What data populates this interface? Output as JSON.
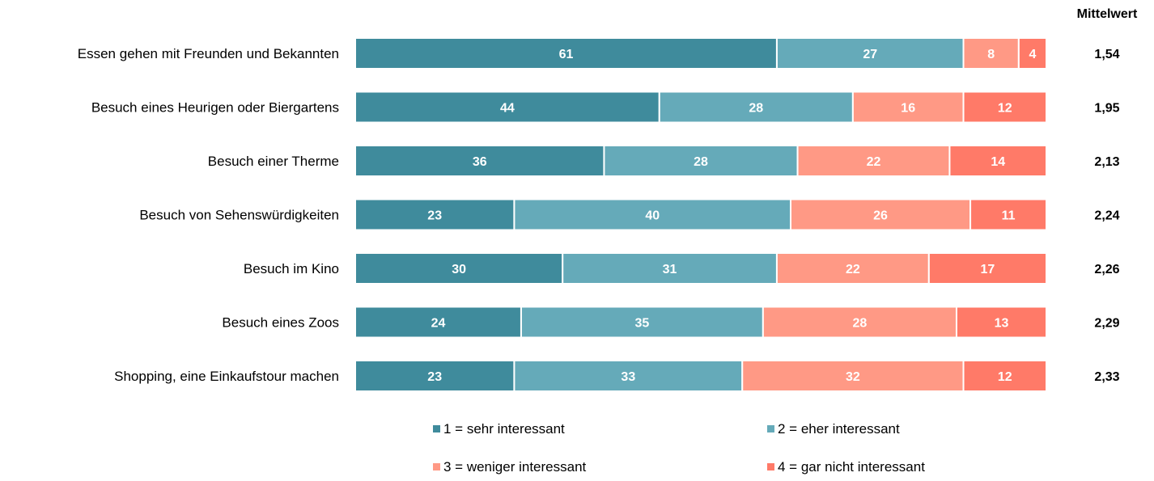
{
  "chart_data": {
    "type": "bar",
    "orientation": "horizontal",
    "stacked": true,
    "title": "",
    "mean_header": "Mittelwert",
    "categories": [
      "Essen gehen mit Freunden und Bekannten",
      "Besuch eines Heurigen oder Biergartens",
      "Besuch einer Therme",
      "Besuch von Sehenswürdigkeiten",
      "Besuch im Kino",
      "Besuch eines Zoos",
      "Shopping, eine Einkaufstour machen"
    ],
    "series": [
      {
        "name": "1 = sehr interessant",
        "color": "#3f8b9c",
        "values": [
          61,
          44,
          36,
          23,
          30,
          24,
          23
        ]
      },
      {
        "name": "2 = eher interessant",
        "color": "#65aab9",
        "values": [
          27,
          28,
          28,
          40,
          31,
          35,
          33
        ]
      },
      {
        "name": "3 = weniger interessant",
        "color": "#ff9985",
        "values": [
          8,
          16,
          22,
          26,
          22,
          28,
          32
        ]
      },
      {
        "name": "4 = gar nicht interessant",
        "color": "#ff7a68",
        "values": [
          4,
          12,
          14,
          11,
          17,
          13,
          12
        ]
      }
    ],
    "mean_values": [
      "1,54",
      "1,95",
      "2,13",
      "2,24",
      "2,26",
      "2,29",
      "2,33"
    ],
    "xlim": [
      0,
      100
    ],
    "grid": false,
    "legend_position": "bottom"
  }
}
